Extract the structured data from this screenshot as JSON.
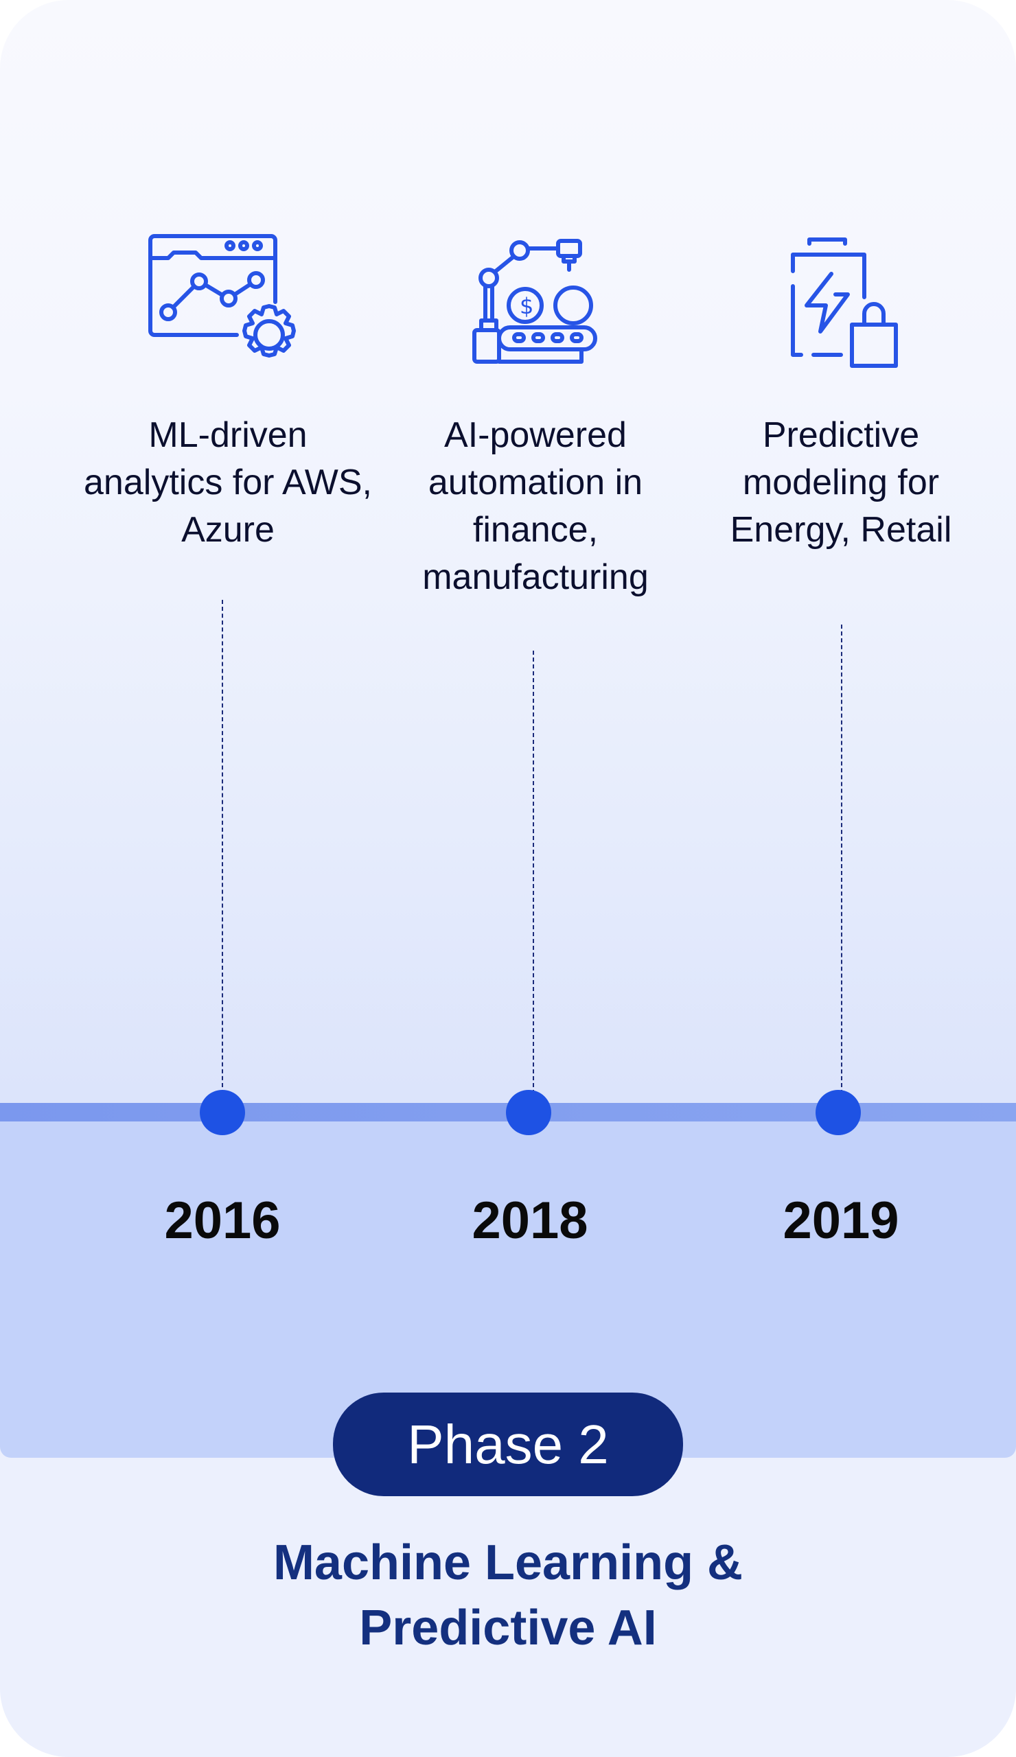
{
  "accent_color": "#1e52e4",
  "milestones": [
    {
      "icon": "analytics-gear-icon",
      "description": "ML-driven analytics for AWS, Azure",
      "year": "2016"
    },
    {
      "icon": "robotic-arm-finance-icon",
      "description": "AI-powered automation in finance, manufacturing",
      "year": "2018"
    },
    {
      "icon": "energy-battery-retail-icon",
      "description": "Predictive modeling for Energy, Retail",
      "year": "2019"
    }
  ],
  "phase": {
    "label": "Phase 2",
    "title": "Machine Learning & Predictive AI"
  }
}
